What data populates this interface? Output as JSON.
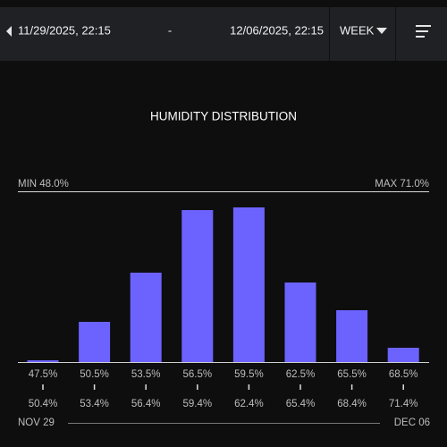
{
  "header": {
    "start": "11/29/2025, 22:15",
    "separator": "-",
    "end": "12/06/2025, 22:15",
    "period": "WEEK"
  },
  "chart_data": {
    "type": "histogram",
    "title": "HUMIDITY DISTRIBUTION",
    "min_label": "MIN 48.0%",
    "max_label": "MAX 71.0%",
    "bins_low": [
      {
        "value": 47.5,
        "label": "47.5%"
      },
      {
        "value": 50.5,
        "label": "50.5%"
      },
      {
        "value": 53.5,
        "label": "53.5%"
      },
      {
        "value": 56.5,
        "label": "56.5%"
      },
      {
        "value": 59.5,
        "label": "59.5%"
      },
      {
        "value": 62.5,
        "label": "62.5%"
      },
      {
        "value": 65.5,
        "label": "65.5%"
      },
      {
        "value": 68.5,
        "label": "68.5%"
      }
    ],
    "bins_high": [
      {
        "value": 50.4,
        "label": "50.4%"
      },
      {
        "value": 53.4,
        "label": "53.4%"
      },
      {
        "value": 56.4,
        "label": "56.4%"
      },
      {
        "value": 59.4,
        "label": "59.4%"
      },
      {
        "value": 62.4,
        "label": "62.4%"
      },
      {
        "value": 65.4,
        "label": "65.4%"
      },
      {
        "value": 68.4,
        "label": "68.4%"
      },
      {
        "value": 71.4,
        "label": "71.4%"
      }
    ],
    "values": [
      2,
      45,
      100,
      170,
      173,
      89,
      58,
      16
    ],
    "color": "#6c63ff",
    "range_start": "NOV 29",
    "range_end": "DEC 06"
  }
}
